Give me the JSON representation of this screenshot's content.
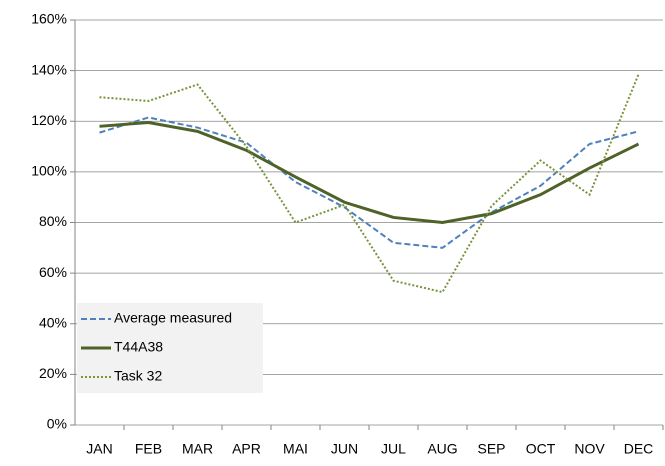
{
  "chart_data": {
    "type": "line",
    "categories": [
      "JAN",
      "FEB",
      "MAR",
      "APR",
      "MAI",
      "JUN",
      "JUL",
      "AUG",
      "SEP",
      "OCT",
      "NOV",
      "DEC"
    ],
    "series": [
      {
        "name": "Average measured",
        "color": "#4f81bd",
        "dash": "dashed",
        "values": [
          115.5,
          121.5,
          117.5,
          111.5,
          96,
          86,
          72,
          70,
          84,
          94.5,
          111,
          116
        ]
      },
      {
        "name": "T44A38",
        "color": "#4f6228",
        "dash": "solid",
        "values": [
          118,
          119.5,
          116,
          108.5,
          98,
          88,
          82,
          80,
          83.5,
          91,
          101.5,
          111
        ]
      },
      {
        "name": "Task 32",
        "color": "#77933c",
        "dash": "dotted",
        "values": [
          129.5,
          128,
          134.5,
          110,
          80,
          87,
          57,
          52.5,
          86.5,
          104.5,
          91,
          138.5
        ]
      }
    ],
    "ylim": [
      0,
      160
    ],
    "yticks": [
      {
        "value": 0,
        "label": "0%"
      },
      {
        "value": 20,
        "label": "20%"
      },
      {
        "value": 40,
        "label": "40%"
      },
      {
        "value": 60,
        "label": "60%"
      },
      {
        "value": 80,
        "label": "80%"
      },
      {
        "value": 100,
        "label": "100%"
      },
      {
        "value": 120,
        "label": "120%"
      },
      {
        "value": 140,
        "label": "140%"
      },
      {
        "value": 160,
        "label": "160%"
      }
    ],
    "grid": true,
    "legend": "bottom-left"
  }
}
